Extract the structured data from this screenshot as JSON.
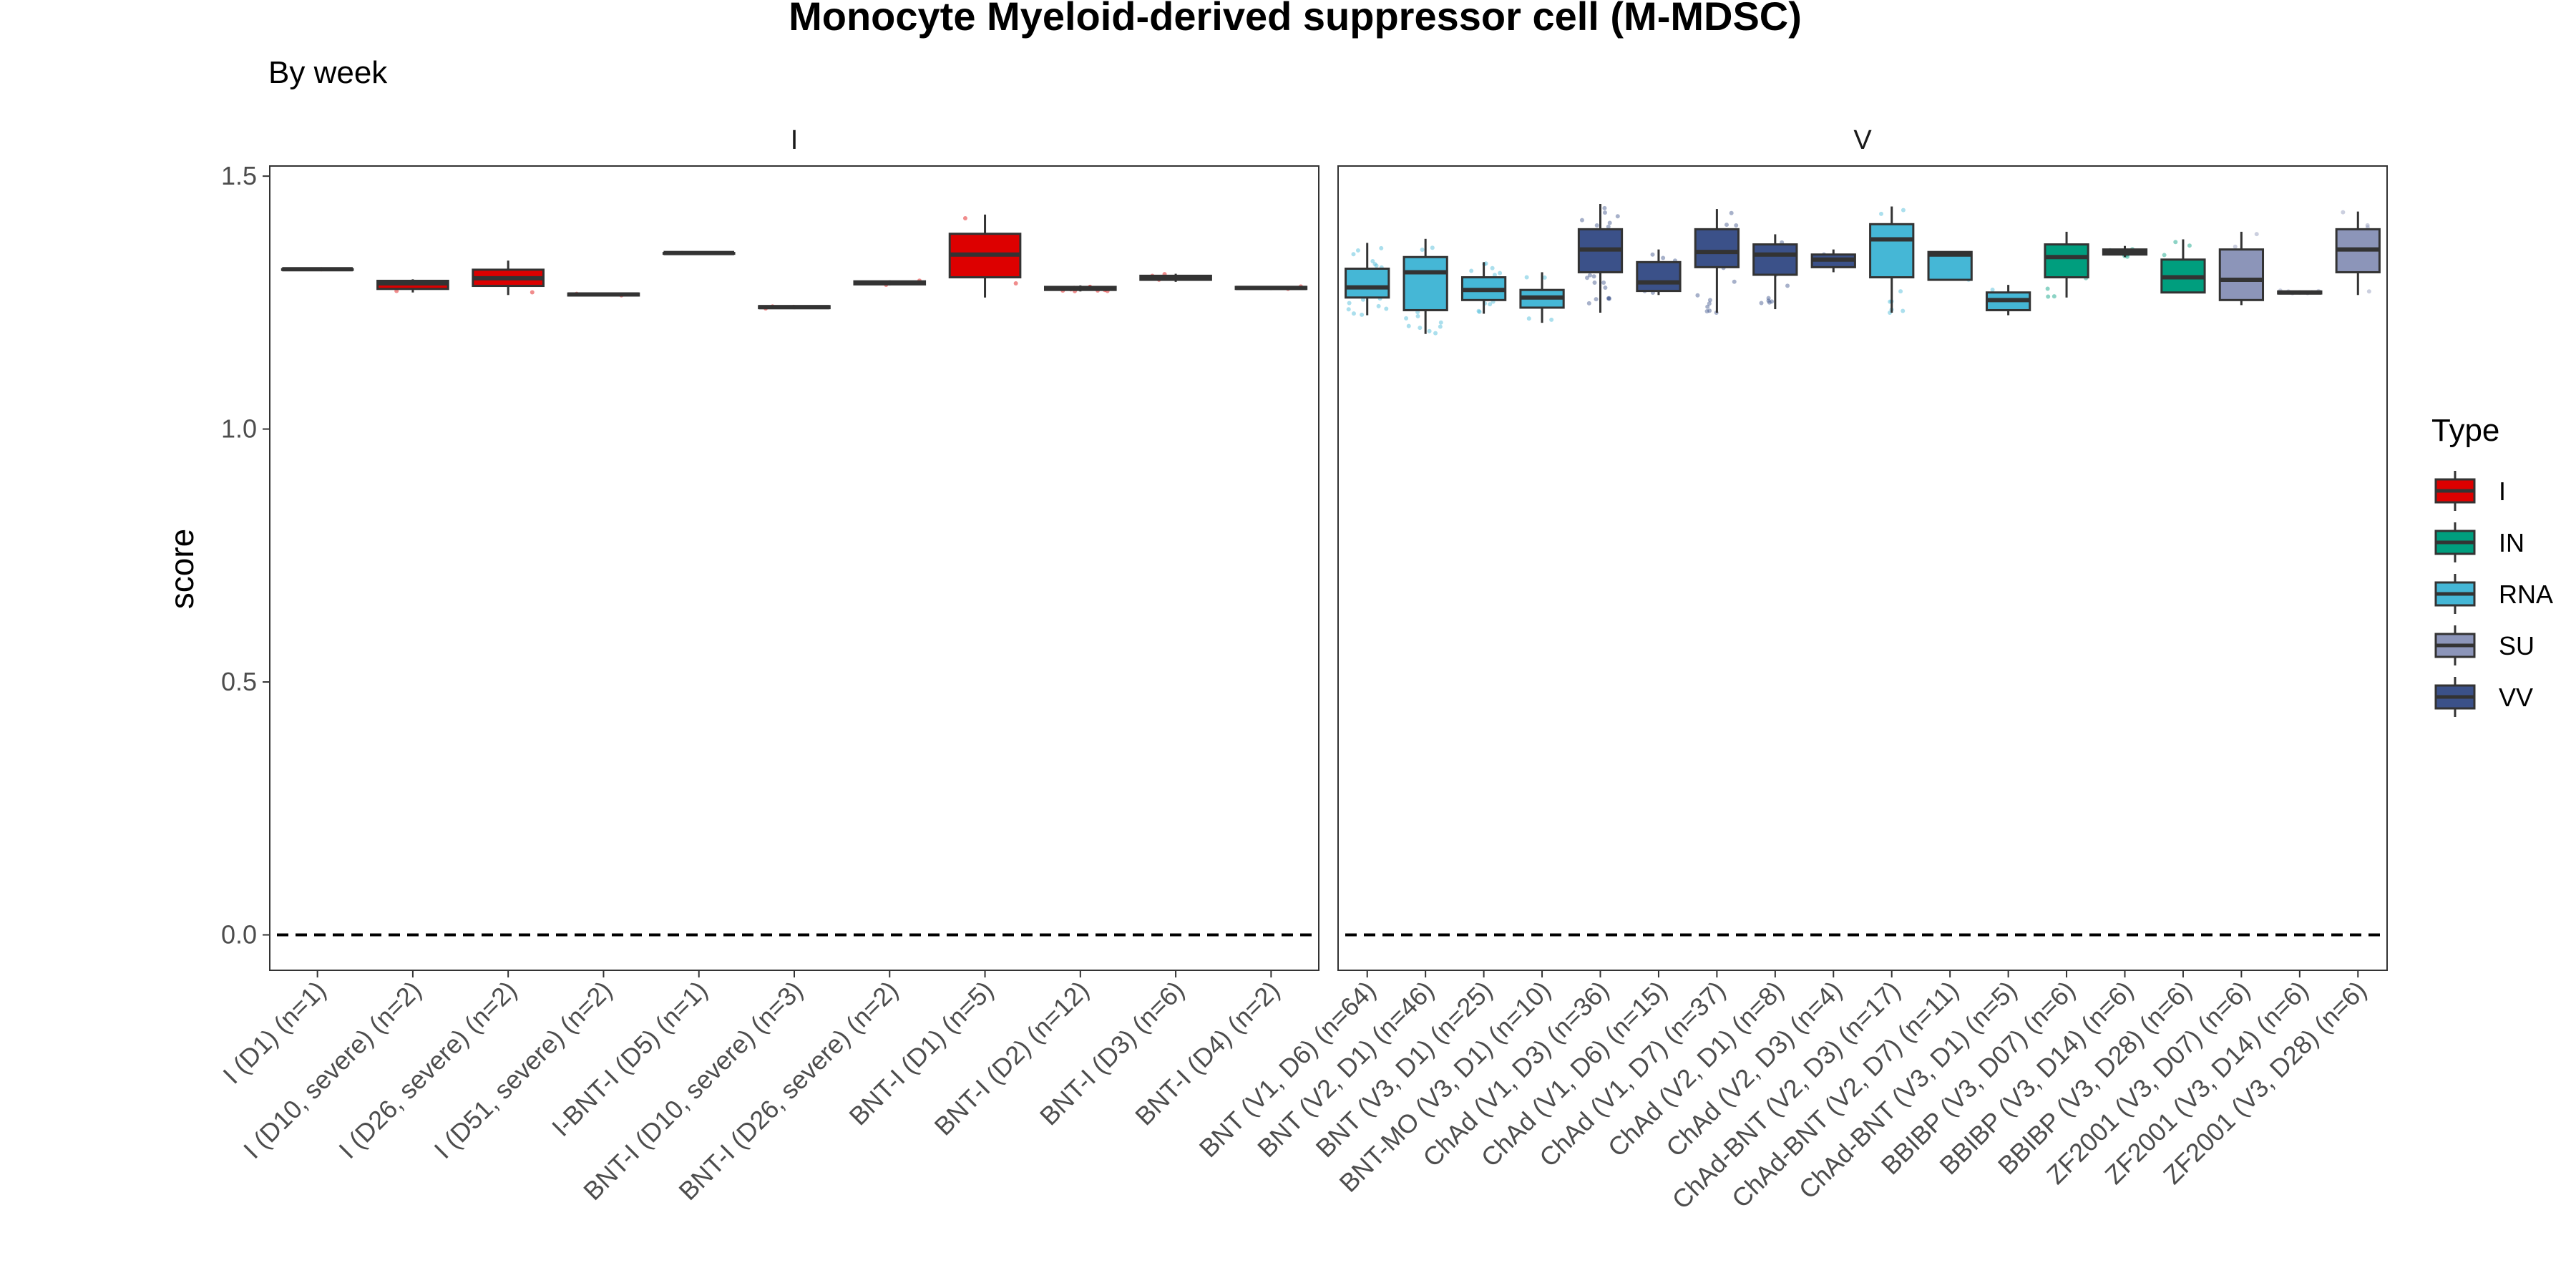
{
  "chart_data": {
    "type": "box",
    "title": "Monocyte Myeloid-derived suppressor cell (M-MDSC)",
    "subtitle": "By week",
    "ylabel": "score",
    "xlabel": "",
    "ylim": [
      -0.07,
      1.52
    ],
    "yticks": [
      0.0,
      0.5,
      1.0,
      1.5
    ],
    "ytick_labels": [
      "0.0",
      "0.5",
      "1.0",
      "1.5"
    ],
    "hline": 0.0,
    "grid": false,
    "legend": {
      "title": "Type",
      "position": "right",
      "items": [
        {
          "label": "I",
          "color": "#dd0000"
        },
        {
          "label": "IN",
          "color": "#009e7e"
        },
        {
          "label": "RNA",
          "color": "#45b7d6"
        },
        {
          "label": "SU",
          "color": "#8c95b9"
        },
        {
          "label": "VV",
          "color": "#3b5189"
        }
      ]
    },
    "panels": [
      {
        "strip": "I",
        "groups": [
          {
            "label": "I (D1) (n=1)",
            "type": "I",
            "q1": 1.316,
            "median": 1.316,
            "q3": 1.316,
            "min": 1.316,
            "max": 1.316
          },
          {
            "label": "I (D10, severe) (n=2)",
            "type": "I",
            "q1": 1.277,
            "median": 1.288,
            "q3": 1.293,
            "min": 1.27,
            "max": 1.296
          },
          {
            "label": "I (D26, severe) (n=2)",
            "type": "I",
            "q1": 1.283,
            "median": 1.298,
            "q3": 1.315,
            "min": 1.265,
            "max": 1.333
          },
          {
            "label": "I (D51, severe) (n=2)",
            "type": "I",
            "q1": 1.264,
            "median": 1.266,
            "q3": 1.268,
            "min": 1.262,
            "max": 1.27
          },
          {
            "label": "I-BNT-I (D5) (n=1)",
            "type": "I",
            "q1": 1.348,
            "median": 1.348,
            "q3": 1.348,
            "min": 1.348,
            "max": 1.348
          },
          {
            "label": "BNT-I (D10, severe) (n=3)",
            "type": "I",
            "q1": 1.239,
            "median": 1.241,
            "q3": 1.243,
            "min": 1.237,
            "max": 1.245
          },
          {
            "label": "BNT-I (D26, severe) (n=2)",
            "type": "I",
            "q1": 1.286,
            "median": 1.289,
            "q3": 1.292,
            "min": 1.284,
            "max": 1.294
          },
          {
            "label": "BNT-I (D1) (n=5)",
            "type": "I",
            "q1": 1.3,
            "median": 1.345,
            "q3": 1.386,
            "min": 1.26,
            "max": 1.424
          },
          {
            "label": "BNT-I (D2) (n=12)",
            "type": "I",
            "q1": 1.275,
            "median": 1.278,
            "q3": 1.281,
            "min": 1.272,
            "max": 1.284
          },
          {
            "label": "BNT-I (D3) (n=6)",
            "type": "I",
            "q1": 1.295,
            "median": 1.299,
            "q3": 1.303,
            "min": 1.291,
            "max": 1.307
          },
          {
            "label": "BNT-I (D4) (n=2)",
            "type": "I",
            "q1": 1.277,
            "median": 1.279,
            "q3": 1.281,
            "min": 1.275,
            "max": 1.283
          }
        ]
      },
      {
        "strip": "V",
        "groups": [
          {
            "label": "BNT (V1, D6) (n=64)",
            "type": "RNA",
            "q1": 1.26,
            "median": 1.28,
            "q3": 1.317,
            "min": 1.225,
            "max": 1.368
          },
          {
            "label": "BNT (V2, D1) (n=46)",
            "type": "RNA",
            "q1": 1.235,
            "median": 1.31,
            "q3": 1.34,
            "min": 1.188,
            "max": 1.376
          },
          {
            "label": "BNT (V3, D1) (n=25)",
            "type": "RNA",
            "q1": 1.255,
            "median": 1.275,
            "q3": 1.3,
            "min": 1.228,
            "max": 1.33
          },
          {
            "label": "BNT-MO (V3, D1) (n=10)",
            "type": "RNA",
            "q1": 1.24,
            "median": 1.26,
            "q3": 1.275,
            "min": 1.21,
            "max": 1.31
          },
          {
            "label": "ChAd (V1, D3) (n=36)",
            "type": "VV",
            "q1": 1.31,
            "median": 1.355,
            "q3": 1.395,
            "min": 1.23,
            "max": 1.445
          },
          {
            "label": "ChAd (V1, D6) (n=15)",
            "type": "VV",
            "q1": 1.273,
            "median": 1.29,
            "q3": 1.33,
            "min": 1.265,
            "max": 1.355
          },
          {
            "label": "ChAd (V1, D7) (n=37)",
            "type": "VV",
            "q1": 1.32,
            "median": 1.35,
            "q3": 1.395,
            "min": 1.23,
            "max": 1.435
          },
          {
            "label": "ChAd (V2, D1) (n=8)",
            "type": "VV",
            "q1": 1.305,
            "median": 1.345,
            "q3": 1.365,
            "min": 1.237,
            "max": 1.385
          },
          {
            "label": "ChAd (V2, D3) (n=4)",
            "type": "VV",
            "q1": 1.32,
            "median": 1.335,
            "q3": 1.345,
            "min": 1.31,
            "max": 1.355
          },
          {
            "label": "ChAd-BNT (V2, D3) (n=17)",
            "type": "RNA",
            "q1": 1.3,
            "median": 1.375,
            "q3": 1.405,
            "min": 1.23,
            "max": 1.44
          },
          {
            "label": "ChAd-BNT (V2, D7) (n=11)",
            "type": "RNA",
            "q1": 1.295,
            "median": 1.345,
            "q3": 1.35,
            "min": 1.295,
            "max": 1.35
          },
          {
            "label": "ChAd-BNT (V3, D1) (n=5)",
            "type": "RNA",
            "q1": 1.235,
            "median": 1.255,
            "q3": 1.27,
            "min": 1.225,
            "max": 1.285
          },
          {
            "label": "BBIBP (V3, D07) (n=6)",
            "type": "IN",
            "q1": 1.3,
            "median": 1.34,
            "q3": 1.365,
            "min": 1.26,
            "max": 1.39
          },
          {
            "label": "BBIBP (V3, D14) (n=6)",
            "type": "IN",
            "q1": 1.345,
            "median": 1.35,
            "q3": 1.355,
            "min": 1.34,
            "max": 1.362
          },
          {
            "label": "BBIBP (V3, D28) (n=6)",
            "type": "IN",
            "q1": 1.27,
            "median": 1.3,
            "q3": 1.335,
            "min": 1.27,
            "max": 1.375
          },
          {
            "label": "ZF2001 (V3, D07) (n=6)",
            "type": "SU",
            "q1": 1.255,
            "median": 1.295,
            "q3": 1.355,
            "min": 1.245,
            "max": 1.39
          },
          {
            "label": "ZF2001 (V3, D14) (n=6)",
            "type": "SU",
            "q1": 1.268,
            "median": 1.27,
            "q3": 1.272,
            "min": 1.266,
            "max": 1.274
          },
          {
            "label": "ZF2001 (V3, D28) (n=6)",
            "type": "SU",
            "q1": 1.31,
            "median": 1.355,
            "q3": 1.395,
            "min": 1.265,
            "max": 1.43
          }
        ]
      }
    ]
  }
}
